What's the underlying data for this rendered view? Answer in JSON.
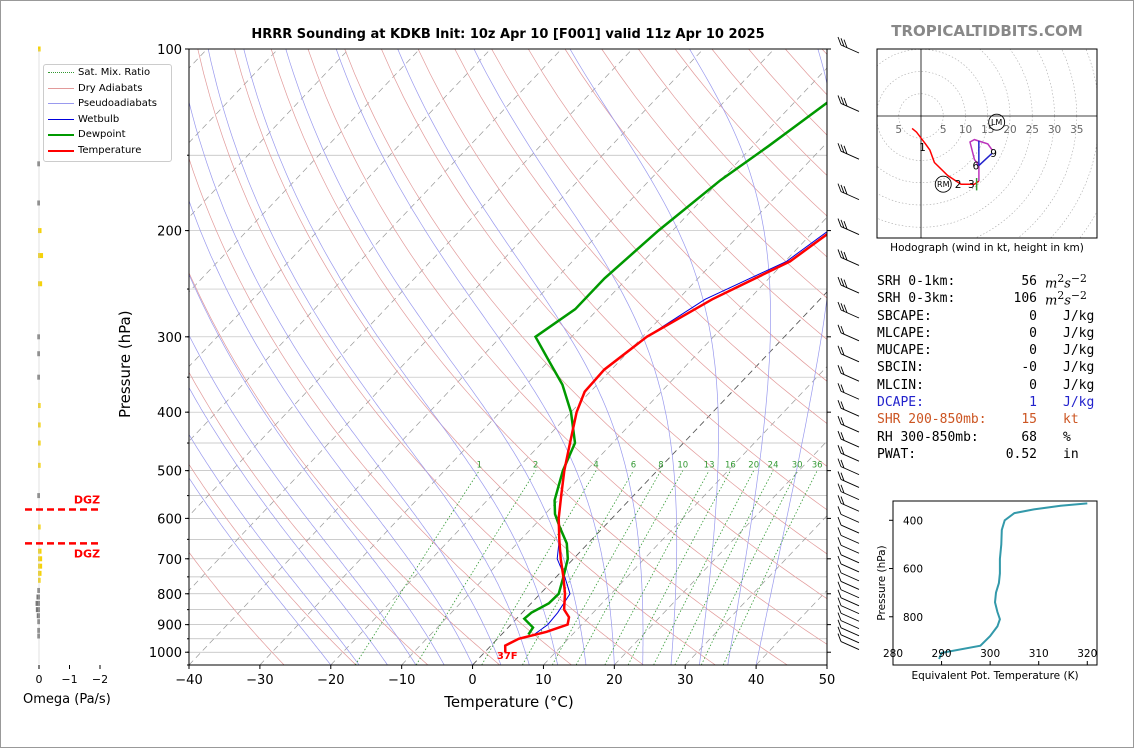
{
  "title": "HRRR Sounding at KDKB Init: 10z Apr 10 [F001] valid 11z Apr 10 2025",
  "watermark": "TROPICALTIDBITS.COM",
  "colors": {
    "temperature": "#ff0000",
    "dewpoint": "#009900",
    "wetbulb": "#0000dd",
    "dry_adiabat": "#e29a9a",
    "pseudoadiabat": "#9999ee",
    "mixing_ratio": "#339933",
    "dcape": "#2222cc",
    "shear": "#cc5522",
    "hodo_magenta": "#bb33bb",
    "theta_e_line": "#3399aa",
    "dgz": "#ff0000"
  },
  "legend": [
    {
      "label": "Sat. Mix. Ratio",
      "style": "dotted",
      "color": "#339933"
    },
    {
      "label": "Dry Adiabats",
      "style": "solid-thin",
      "color": "#e29a9a"
    },
    {
      "label": "Pseudoadiabats",
      "style": "solid-thin",
      "color": "#9999ee"
    },
    {
      "label": "Wetbulb",
      "style": "solid",
      "color": "#0000dd"
    },
    {
      "label": "Dewpoint",
      "style": "solid-thick",
      "color": "#009900"
    },
    {
      "label": "Temperature",
      "style": "solid-thick",
      "color": "#ff0000"
    }
  ],
  "axes": {
    "xlabel": "Temperature (°C)",
    "ylabel": "Pressure (hPa)",
    "omega_label": "Omega (Pa/s)",
    "hodo_label": "Hodograph (wind in kt, height in km)",
    "theta_xlabel": "Equivalent Pot. Temperature (K)",
    "theta_ylabel": "Pressure (hPa)"
  },
  "sfc_temp_label": "37F",
  "dgz_label": "DGZ",
  "stats": [
    {
      "key": "SRH 0-1km:",
      "value": "56",
      "unit": "m2s-2",
      "color": "#000"
    },
    {
      "key": "SRH 0-3km:",
      "value": "106",
      "unit": "m2s-2",
      "color": "#000"
    },
    {
      "key": "SBCAPE:",
      "value": "0",
      "unit": "J/kg",
      "color": "#000"
    },
    {
      "key": "MLCAPE:",
      "value": "0",
      "unit": "J/kg",
      "color": "#000"
    },
    {
      "key": "MUCAPE:",
      "value": "0",
      "unit": "J/kg",
      "color": "#000"
    },
    {
      "key": "SBCIN:",
      "value": "-0",
      "unit": "J/kg",
      "color": "#000"
    },
    {
      "key": "MLCIN:",
      "value": "0",
      "unit": "J/kg",
      "color": "#000"
    },
    {
      "key": "DCAPE:",
      "value": "1",
      "unit": "J/kg",
      "color": "#2222cc"
    },
    {
      "key": "SHR 200-850mb:",
      "value": "15",
      "unit": "kt",
      "color": "#cc5522"
    },
    {
      "key": "RH 300-850mb:",
      "value": "68",
      "unit": "%",
      "color": "#000"
    },
    {
      "key": "PWAT:",
      "value": "0.52",
      "unit": "in",
      "color": "#000"
    }
  ],
  "chart_data": [
    {
      "type": "line",
      "name": "skew-t",
      "xlabel": "Temperature (°C)",
      "ylabel": "Pressure (hPa)",
      "xlim": [
        -40,
        50
      ],
      "ylim": [
        1050,
        100
      ],
      "y_scale": "log",
      "x_ticks": [
        "−40",
        "−30",
        "−20",
        "−10",
        "0",
        "10",
        "20",
        "30",
        "40",
        "50"
      ],
      "y_ticks": [
        "100",
        "200",
        "300",
        "400",
        "500",
        "600",
        "700",
        "800",
        "900",
        "1000"
      ],
      "mixing_ratio_labels": [
        "1",
        "2",
        "4",
        "6",
        "8",
        "10",
        "13",
        "16",
        "20",
        "24",
        "30",
        "36"
      ],
      "series": [
        {
          "name": "Temperature",
          "points": [
            [
              2.9,
              1000
            ],
            [
              2.0,
              975
            ],
            [
              3.0,
              950
            ],
            [
              6.0,
              925
            ],
            [
              8.0,
              900
            ],
            [
              7.2,
              875
            ],
            [
              5.5,
              850
            ],
            [
              3.5,
              800
            ],
            [
              1.0,
              750
            ],
            [
              -1.8,
              700
            ],
            [
              -4.6,
              650
            ],
            [
              -7.5,
              600
            ],
            [
              -10.2,
              550
            ],
            [
              -13.1,
              500
            ],
            [
              -16.0,
              450
            ],
            [
              -19.2,
              400
            ],
            [
              -20.8,
              370
            ],
            [
              -21.0,
              340
            ],
            [
              -19.4,
              300
            ],
            [
              -15.2,
              260
            ],
            [
              -9.3,
              225
            ],
            [
              -7.5,
              200
            ],
            [
              -5.4,
              170
            ],
            [
              -3.6,
              150
            ],
            [
              -2.2,
              125
            ],
            [
              -0.6,
              100
            ]
          ]
        },
        {
          "name": "Dewpoint",
          "points": [
            [
              3.8,
              935
            ],
            [
              3.5,
              910
            ],
            [
              1.1,
              880
            ],
            [
              1.3,
              860
            ],
            [
              2.5,
              830
            ],
            [
              2.6,
              800
            ],
            [
              1.0,
              750
            ],
            [
              -0.8,
              700
            ],
            [
              -3.0,
              660
            ],
            [
              -6.2,
              620
            ],
            [
              -8.6,
              590
            ],
            [
              -10.5,
              560
            ],
            [
              -13.3,
              500
            ],
            [
              -15.3,
              450
            ],
            [
              -20.0,
              400
            ],
            [
              -24.9,
              360
            ],
            [
              -29.8,
              330
            ],
            [
              -35.1,
              300
            ],
            [
              -33.2,
              270
            ],
            [
              -33.2,
              240
            ],
            [
              -32.0,
              200
            ],
            [
              -30.0,
              165
            ],
            [
              -27.8,
              145
            ],
            [
              -25.0,
              120
            ],
            [
              -21.5,
              100
            ]
          ]
        },
        {
          "name": "Wetbulb",
          "points": [
            [
              4.6,
              935
            ],
            [
              5.2,
              900
            ],
            [
              5.0,
              860
            ],
            [
              4.2,
              800
            ],
            [
              1.2,
              750
            ],
            [
              -2.3,
              700
            ],
            [
              -4.6,
              650
            ],
            [
              -7.6,
              600
            ],
            [
              -10.2,
              550
            ],
            [
              -13.1,
              500
            ],
            [
              -16.0,
              450
            ],
            [
              -19.2,
              400
            ],
            [
              -20.8,
              370
            ],
            [
              -21.0,
              340
            ],
            [
              -19.4,
              300
            ],
            [
              -16.2,
              260
            ],
            [
              -9.8,
              225
            ],
            [
              -8.0,
              200
            ],
            [
              -5.9,
              170
            ],
            [
              -4.0,
              150
            ],
            [
              -2.5,
              125
            ],
            [
              -1.0,
              100
            ]
          ]
        }
      ]
    },
    {
      "type": "line",
      "name": "hodograph",
      "xlim": [
        -10,
        40
      ],
      "ylim": [
        -15,
        15
      ],
      "ring_labels": [
        "5",
        "5",
        "10",
        "15",
        "20",
        "25",
        "30",
        "35"
      ],
      "height_labels": [
        {
          "km": "1",
          "u": 1,
          "v": -5
        },
        {
          "km": "2",
          "u": 9,
          "v": -11
        },
        {
          "km": "3",
          "u": 12,
          "v": -11
        },
        {
          "km": "6",
          "u": 13,
          "v": -8
        },
        {
          "km": "9",
          "u": 17,
          "v": -6
        }
      ],
      "markers": [
        {
          "label": "LM",
          "u": 17,
          "v": -1
        },
        {
          "label": "RM",
          "u": 5,
          "v": -11
        }
      ],
      "points": [
        [
          -2,
          -2
        ],
        [
          -1,
          -2.6
        ],
        [
          1,
          -4.5
        ],
        [
          2,
          -5.5
        ],
        [
          3,
          -7.5
        ],
        [
          6,
          -9.6
        ],
        [
          9,
          -11
        ],
        [
          11,
          -11
        ],
        [
          12,
          -11
        ],
        [
          13,
          -10.5
        ],
        [
          13,
          -8
        ],
        [
          12,
          -7
        ],
        [
          11,
          -4.2
        ],
        [
          12,
          -3.8
        ],
        [
          15,
          -4.5
        ],
        [
          16,
          -5.5
        ]
      ]
    },
    {
      "type": "line",
      "name": "theta-e",
      "xlabel": "Equivalent Pot. Temperature (K)",
      "ylabel": "Pressure (hPa)",
      "xlim": [
        280,
        322
      ],
      "ylim": [
        1000,
        320
      ],
      "x_ticks": [
        "280",
        "290",
        "300",
        "310",
        "320"
      ],
      "y_ticks": [
        "400",
        "600",
        "800"
      ],
      "points": [
        [
          289.5,
          975
        ],
        [
          290,
          950
        ],
        [
          298,
          920
        ],
        [
          300,
          880
        ],
        [
          301.5,
          840
        ],
        [
          302,
          810
        ],
        [
          301.5,
          780
        ],
        [
          301,
          740
        ],
        [
          301.2,
          700
        ],
        [
          301.8,
          660
        ],
        [
          302,
          620
        ],
        [
          302,
          560
        ],
        [
          302.3,
          500
        ],
        [
          302.4,
          440
        ],
        [
          303.0,
          400
        ],
        [
          305.0,
          370
        ],
        [
          309,
          355
        ],
        [
          314.5,
          340
        ],
        [
          320,
          330
        ]
      ]
    },
    {
      "type": "bar",
      "name": "omega",
      "xlabel": "Omega (Pa/s)",
      "xlim": [
        0.3,
        -2.2
      ],
      "x_ticks": [
        "0",
        "−1",
        "−2"
      ],
      "dgz_pressures": [
        580,
        660
      ],
      "bars": [
        [
          100,
          -0.02
        ],
        [
          155,
          0.02
        ],
        [
          180,
          0.02
        ],
        [
          200,
          -0.05
        ],
        [
          220,
          -0.1
        ],
        [
          245,
          -0.07
        ],
        [
          300,
          0.02
        ],
        [
          320,
          0.02
        ],
        [
          350,
          0.02
        ],
        [
          390,
          -0.02
        ],
        [
          420,
          -0.02
        ],
        [
          450,
          -0.02
        ],
        [
          490,
          -0.02
        ],
        [
          550,
          0.02
        ],
        [
          620,
          -0.02
        ],
        [
          680,
          -0.05
        ],
        [
          700,
          -0.07
        ],
        [
          720,
          -0.07
        ],
        [
          740,
          -0.05
        ],
        [
          760,
          -0.02
        ],
        [
          790,
          0.02
        ],
        [
          810,
          0.05
        ],
        [
          830,
          0.08
        ],
        [
          850,
          0.07
        ],
        [
          870,
          0.04
        ],
        [
          890,
          0.02
        ],
        [
          920,
          0.02
        ],
        [
          940,
          0.02
        ]
      ]
    }
  ]
}
